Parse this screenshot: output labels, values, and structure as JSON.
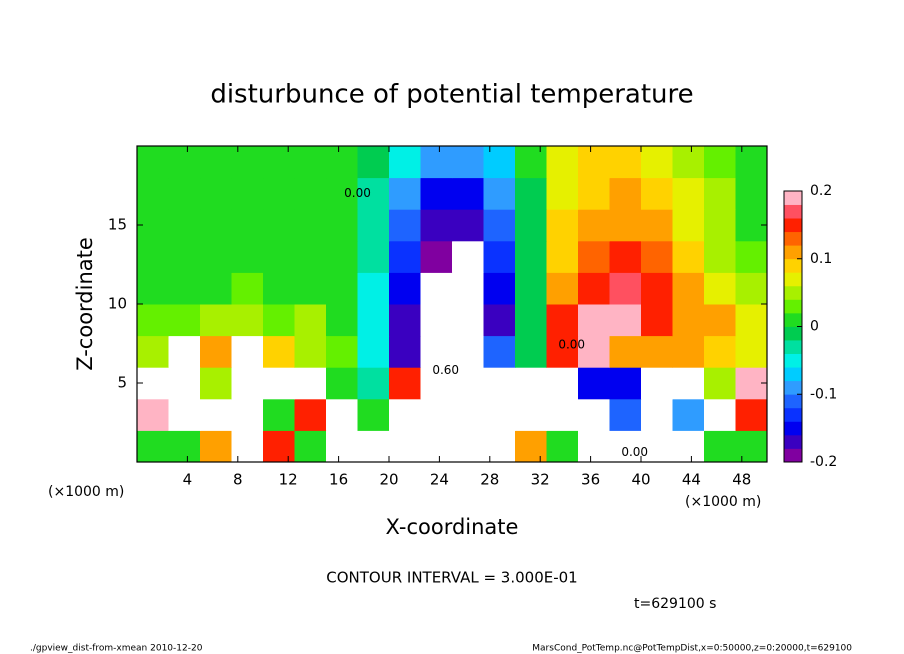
{
  "chart_data": {
    "type": "contour",
    "title": "disturbunce of potential temperature",
    "xlabel": "X-coordinate",
    "ylabel": "Z-coordinate",
    "x_unit_label": "(×1000 m)",
    "xlim": [
      0,
      50
    ],
    "ylim": [
      0,
      20
    ],
    "xticks": [
      4,
      8,
      12,
      16,
      20,
      24,
      28,
      32,
      36,
      40,
      44,
      48
    ],
    "yticks": [
      5,
      10,
      15
    ],
    "x": [
      1.25,
      3.75,
      6.25,
      8.75,
      11.25,
      13.75,
      16.25,
      18.75,
      21.25,
      23.75,
      26.25,
      28.75,
      31.25,
      33.75,
      36.25,
      38.75,
      41.25,
      43.75,
      46.25,
      48.75
    ],
    "y": [
      1,
      3,
      5,
      7,
      9,
      11,
      13,
      15,
      17,
      19
    ],
    "z": [
      [
        0.02,
        0.02,
        0.1,
        0.3,
        0.15,
        0.02,
        -0.3,
        -0.3,
        0.3,
        -0.3,
        -0.3,
        0.3,
        0.1,
        0.02,
        -0.3,
        -0.3,
        -0.3,
        -0.3,
        0.02,
        0.0
      ],
      [
        0.2,
        0.3,
        0.3,
        -0.3,
        0.02,
        0.15,
        0.3,
        0.02,
        0.3,
        -0.3,
        -0.3,
        0.3,
        -0.3,
        -0.3,
        -0.3,
        -0.12,
        -0.3,
        -0.1,
        -0.3,
        0.15
      ],
      [
        0.3,
        0.3,
        0.05,
        -0.3,
        0.3,
        0.3,
        0.02,
        -0.03,
        0.15,
        -0.3,
        -0.3,
        0.3,
        -0.3,
        -0.3,
        -0.15,
        -0.15,
        -0.3,
        -0.3,
        0.05,
        0.2
      ],
      [
        0.05,
        0.3,
        0.1,
        0.3,
        0.08,
        0.05,
        0.03,
        -0.05,
        -0.18,
        -0.3,
        -0.3,
        -0.12,
        -0.02,
        0.15,
        0.2,
        0.12,
        0.1,
        0.1,
        0.08,
        0.06
      ],
      [
        0.03,
        0.03,
        0.04,
        0.04,
        0.03,
        0.04,
        0.02,
        -0.05,
        -0.17,
        -0.3,
        -0.3,
        -0.17,
        -0.02,
        0.14,
        0.19,
        0.18,
        0.14,
        0.12,
        0.1,
        0.06
      ],
      [
        0.02,
        0.02,
        0.02,
        0.03,
        0.02,
        0.02,
        0.01,
        -0.04,
        -0.15,
        -0.21,
        -0.3,
        -0.15,
        -0.02,
        0.11,
        0.15,
        0.16,
        0.14,
        0.1,
        0.06,
        0.04
      ],
      [
        0.02,
        0.01,
        0.02,
        0.02,
        0.01,
        0.02,
        0.01,
        -0.03,
        -0.13,
        -0.19,
        -0.21,
        -0.13,
        -0.02,
        0.09,
        0.13,
        0.14,
        0.13,
        0.08,
        0.05,
        0.03
      ],
      [
        0.01,
        0.0,
        0.01,
        0.02,
        0.0,
        0.01,
        0.0,
        -0.03,
        -0.12,
        -0.17,
        -0.17,
        -0.12,
        -0.02,
        0.08,
        0.11,
        0.12,
        0.11,
        0.07,
        0.04,
        0.02
      ],
      [
        0.02,
        0.02,
        0.01,
        0.02,
        0.01,
        0.0,
        0.0,
        -0.03,
        -0.1,
        -0.15,
        -0.15,
        -0.1,
        -0.02,
        0.06,
        0.09,
        0.1,
        0.09,
        0.06,
        0.04,
        0.02
      ],
      [
        0.02,
        0.02,
        0.02,
        0.02,
        0.01,
        0.01,
        0.0,
        -0.02,
        -0.06,
        -0.1,
        -0.1,
        -0.07,
        0.0,
        0.06,
        0.08,
        0.08,
        0.07,
        0.05,
        0.03,
        0.02
      ]
    ],
    "zlim": [
      -0.2,
      0.2
    ],
    "zticks": [
      -0.2,
      -0.1,
      0,
      0.1,
      0.2
    ],
    "colormap": [
      "#8000a0",
      "#3a00c0",
      "#0000f0",
      "#0a32ff",
      "#1e64ff",
      "#2f9cff",
      "#00ccff",
      "#00f0e6",
      "#00e0a0",
      "#00cc50",
      "#20dc20",
      "#64f000",
      "#a8f000",
      "#e6f000",
      "#ffd200",
      "#ffa000",
      "#ff6400",
      "#ff2000",
      "#ff5060",
      "#ffb4c4"
    ],
    "out_of_range_color": "#ffffff",
    "contour_labels": [
      {
        "text": "0.00",
        "x": 17.5,
        "y": 17.0
      },
      {
        "text": "0.00",
        "x": 34.5,
        "y": 7.4
      },
      {
        "text": "0.00",
        "x": 39.5,
        "y": 0.6
      },
      {
        "text": "0.60",
        "x": 24.5,
        "y": 5.8
      }
    ],
    "contour_interval": "CONTOUR INTERVAL = 3.000E-01",
    "time_label": "t=629100 s",
    "footer_left": "./gpview_dist-from-xmean  2010-12-20",
    "footer_right": "MarsCond_PotTemp.nc@PotTempDist,x=0:50000,z=0:20000,t=629100"
  }
}
